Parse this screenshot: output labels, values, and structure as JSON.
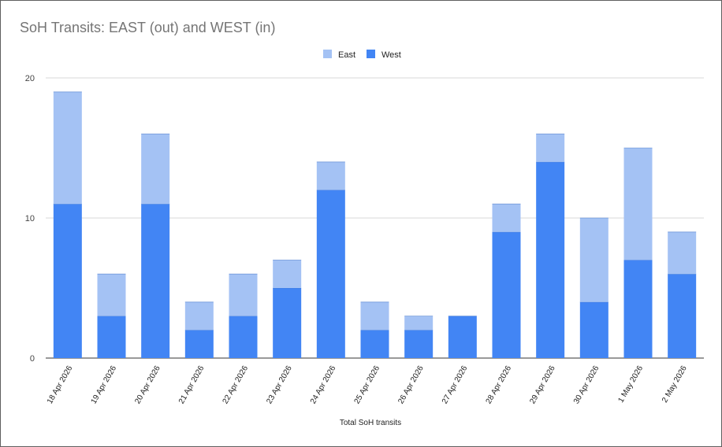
{
  "chart_data": {
    "type": "bar",
    "stacked": true,
    "title": "SoH Transits: EAST (out) and WEST (in)",
    "xlabel": "Total SoH transits",
    "ylabel": "",
    "ylim": [
      0,
      20
    ],
    "yticks": [
      0,
      10,
      20
    ],
    "grid": true,
    "legend_position": "top-center",
    "categories": [
      "18 Apr 2026",
      "19 Apr 2026",
      "20 Apr 2026",
      "21 Apr 2026",
      "22 Apr 2026",
      "23 Apr 2026",
      "24 Apr 2026",
      "25 Apr 2026",
      "26 Apr 2026",
      "27 Apr 2026",
      "28 Apr 2026",
      "29 Apr 2026",
      "30 Apr 2026",
      "1 May 2026",
      "2 May 2026"
    ],
    "series": [
      {
        "name": "West",
        "color": "#4285f4",
        "values": [
          11,
          3,
          11,
          2,
          3,
          5,
          12,
          2,
          2,
          3,
          9,
          14,
          4,
          7,
          6
        ]
      },
      {
        "name": "East",
        "color": "#a4c2f4",
        "values": [
          8,
          3,
          5,
          2,
          3,
          2,
          2,
          2,
          1,
          0,
          2,
          2,
          6,
          8,
          3
        ]
      }
    ],
    "legend_order": [
      "East",
      "West"
    ]
  }
}
